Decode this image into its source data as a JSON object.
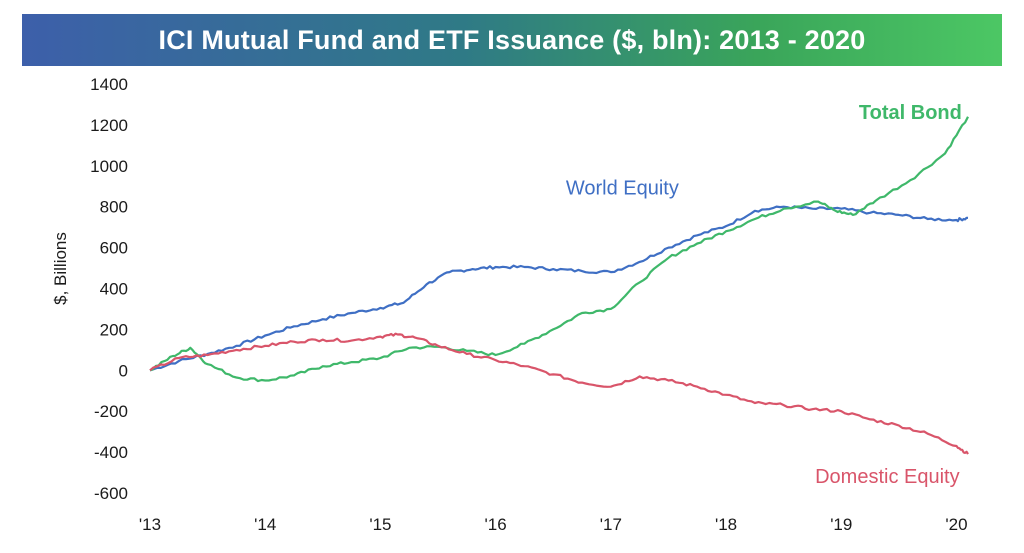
{
  "chart_data": {
    "type": "line",
    "title": "ICI Mutual Fund and ETF Issuance ($, bln): 2013 - 2020",
    "xlabel": "",
    "ylabel": "$, Billions",
    "x_tick_labels": [
      "'13",
      "'14",
      "'15",
      "'16",
      "'17",
      "'18",
      "'19",
      "'20"
    ],
    "x_ticks": [
      2013,
      2014,
      2015,
      2016,
      2017,
      2018,
      2019,
      2020
    ],
    "xlim": [
      2013,
      2020.1
    ],
    "ylim": [
      -600,
      1400
    ],
    "y_ticks": [
      -600,
      -400,
      -200,
      0,
      200,
      400,
      600,
      800,
      1000,
      1200,
      1400
    ],
    "grid": false,
    "legend": "inline labels",
    "colors": {
      "world_equity": "#3f6fc4",
      "total_bond": "#3fb86a",
      "domestic_equity": "#d9556a",
      "title_gradient_start": "#3d5faa",
      "title_gradient_end": "#4cc764"
    },
    "series": [
      {
        "name": "World Equity",
        "key": "world_equity",
        "color": "#3f6fc4",
        "x": [
          2013.0,
          2013.25,
          2013.5,
          2013.75,
          2014.0,
          2014.25,
          2014.5,
          2014.75,
          2015.0,
          2015.2,
          2015.4,
          2015.6,
          2015.8,
          2016.0,
          2016.25,
          2016.5,
          2016.75,
          2017.0,
          2017.25,
          2017.5,
          2017.75,
          2018.0,
          2018.25,
          2018.5,
          2018.75,
          2019.0,
          2019.25,
          2019.5,
          2019.75,
          2020.0,
          2020.1
        ],
        "y": [
          0,
          45,
          80,
          120,
          170,
          215,
          250,
          280,
          305,
          330,
          420,
          480,
          495,
          505,
          505,
          495,
          485,
          480,
          530,
          600,
          660,
          705,
          780,
          800,
          790,
          790,
          770,
          760,
          740,
          735,
          745
        ]
      },
      {
        "name": "Total Bond",
        "key": "total_bond",
        "color": "#3fb86a",
        "x": [
          2013.0,
          2013.2,
          2013.35,
          2013.5,
          2013.75,
          2014.0,
          2014.25,
          2014.5,
          2014.75,
          2015.0,
          2015.25,
          2015.5,
          2015.75,
          2016.0,
          2016.25,
          2016.5,
          2016.75,
          2017.0,
          2017.25,
          2017.5,
          2017.75,
          2018.0,
          2018.25,
          2018.5,
          2018.8,
          2018.95,
          2019.1,
          2019.3,
          2019.6,
          2019.9,
          2020.1
        ],
        "y": [
          0,
          70,
          110,
          30,
          -35,
          -50,
          -25,
          20,
          40,
          60,
          110,
          115,
          95,
          75,
          130,
          200,
          280,
          300,
          430,
          550,
          620,
          680,
          740,
          790,
          825,
          780,
          760,
          830,
          930,
          1060,
          1240
        ]
      },
      {
        "name": "Domestic Equity",
        "key": "domestic_equity",
        "color": "#d9556a",
        "x": [
          2013.0,
          2013.25,
          2013.5,
          2013.75,
          2014.0,
          2014.25,
          2014.5,
          2014.75,
          2015.0,
          2015.15,
          2015.3,
          2015.5,
          2015.75,
          2016.0,
          2016.25,
          2016.5,
          2016.75,
          2017.0,
          2017.25,
          2017.5,
          2017.75,
          2018.0,
          2018.25,
          2018.5,
          2018.75,
          2019.0,
          2019.25,
          2019.5,
          2019.75,
          2020.0,
          2020.1
        ],
        "y": [
          0,
          60,
          75,
          100,
          120,
          140,
          150,
          145,
          165,
          175,
          160,
          120,
          80,
          50,
          20,
          -20,
          -60,
          -80,
          -30,
          -50,
          -80,
          -120,
          -160,
          -170,
          -190,
          -200,
          -240,
          -270,
          -310,
          -370,
          -410
        ]
      }
    ],
    "annotations": [
      {
        "text": "World Equity",
        "series": "world_equity",
        "anchor": [
          2017.1,
          860
        ]
      },
      {
        "text": "Total Bond",
        "series": "total_bond",
        "anchor": [
          2019.6,
          1230
        ]
      },
      {
        "text": "Domestic Equity",
        "series": "domestic_equity",
        "anchor": [
          2019.4,
          -550
        ]
      }
    ]
  }
}
